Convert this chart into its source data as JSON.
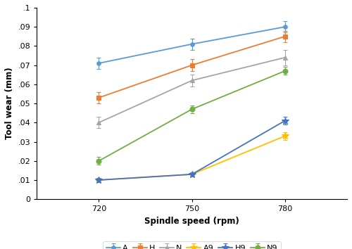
{
  "x": [
    720,
    750,
    780
  ],
  "series": {
    "A": {
      "y": [
        0.071,
        0.081,
        0.09
      ],
      "yerr": [
        0.003,
        0.003,
        0.003
      ],
      "color": "#5B9BD5",
      "marker": "o",
      "ms": 4
    },
    "H": {
      "y": [
        0.053,
        0.07,
        0.085
      ],
      "yerr": [
        0.003,
        0.003,
        0.003
      ],
      "color": "#ED7D31",
      "marker": "s",
      "ms": 4
    },
    "N": {
      "y": [
        0.04,
        0.062,
        0.074
      ],
      "yerr": [
        0.003,
        0.003,
        0.004
      ],
      "color": "#A5A5A5",
      "marker": "^",
      "ms": 4
    },
    "A9": {
      "y": [
        0.01,
        0.013,
        0.033
      ],
      "yerr": [
        0.001,
        0.001,
        0.002
      ],
      "color": "#FFC000",
      "marker": "*",
      "ms": 7
    },
    "H9": {
      "y": [
        0.01,
        0.013,
        0.041
      ],
      "yerr": [
        0.001,
        0.001,
        0.002
      ],
      "color": "#4472C4",
      "marker": "*",
      "ms": 7
    },
    "N9": {
      "y": [
        0.02,
        0.047,
        0.067
      ],
      "yerr": [
        0.002,
        0.002,
        0.002
      ],
      "color": "#70AD47",
      "marker": "o",
      "ms": 5
    }
  },
  "xlabel": "Spindle speed (rpm)",
  "ylabel": "Tool wear (mm)",
  "ylim": [
    0,
    0.1
  ],
  "ytick_vals": [
    0,
    0.01,
    0.02,
    0.03,
    0.04,
    0.05,
    0.06,
    0.07,
    0.08,
    0.09,
    0.1
  ],
  "ytick_labels": [
    "0",
    ".01",
    ".02",
    ".03",
    ".04",
    ".05",
    ".06",
    ".07",
    ".08",
    ".09",
    ".1"
  ],
  "xticks": [
    720,
    750,
    780
  ],
  "xlim": [
    700,
    800
  ],
  "background_color": "#ffffff",
  "legend_order": [
    "A",
    "H",
    "N",
    "A9",
    "H9",
    "N9"
  ],
  "linewidth": 1.3,
  "capsize": 2.5,
  "elinewidth": 0.8
}
